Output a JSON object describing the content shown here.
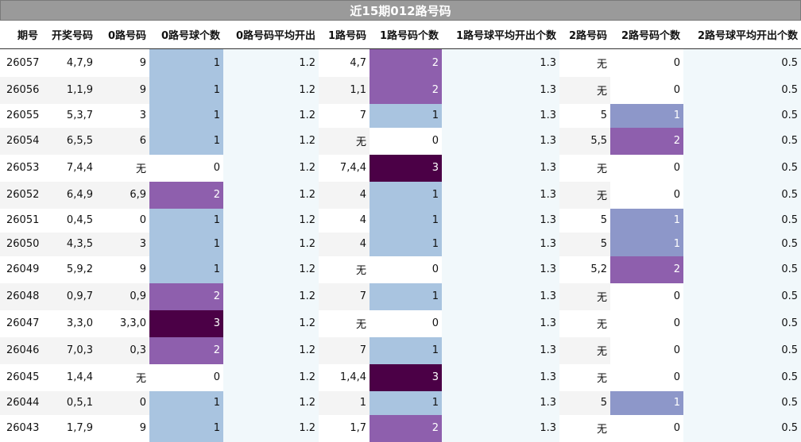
{
  "title": "近15期012路号码",
  "headers": [
    "期号",
    "开奖号码",
    "0路号码",
    "0路号球个数",
    "0路号码平均开出",
    "1路号码",
    "1路号码个数",
    "1路号球平均开出个数",
    "2路号码",
    "2路号码个数",
    "2路号球平均开出个数"
  ],
  "colors": {
    "count_1": "#a9c4e0",
    "count_1_col2": "#8d97c9",
    "count_2": "#8e5fad",
    "count_3": "#4b0046",
    "avg_bg": "#f1f8fb"
  },
  "rows": [
    [
      "26057",
      "4,7,9",
      "9",
      "1",
      "1.2",
      "4,7",
      "2",
      "1.3",
      "无",
      "0",
      "0.5"
    ],
    [
      "26056",
      "1,1,9",
      "9",
      "1",
      "1.2",
      "1,1",
      "2",
      "1.3",
      "无",
      "0",
      "0.5"
    ],
    [
      "26055",
      "5,3,7",
      "3",
      "1",
      "1.2",
      "7",
      "1",
      "1.3",
      "5",
      "1",
      "0.5"
    ],
    [
      "26054",
      "6,5,5",
      "6",
      "1",
      "1.2",
      "无",
      "0",
      "1.3",
      "5,5",
      "2",
      "0.5"
    ],
    [
      "26053",
      "7,4,4",
      "无",
      "0",
      "1.2",
      "7,4,4",
      "3",
      "1.3",
      "无",
      "0",
      "0.5"
    ],
    [
      "26052",
      "6,4,9",
      "6,9",
      "2",
      "1.2",
      "4",
      "1",
      "1.3",
      "无",
      "0",
      "0.5"
    ],
    [
      "26051",
      "0,4,5",
      "0",
      "1",
      "1.2",
      "4",
      "1",
      "1.3",
      "5",
      "1",
      "0.5"
    ],
    [
      "26050",
      "4,3,5",
      "3",
      "1",
      "1.2",
      "4",
      "1",
      "1.3",
      "5",
      "1",
      "0.5"
    ],
    [
      "26049",
      "5,9,2",
      "9",
      "1",
      "1.2",
      "无",
      "0",
      "1.3",
      "5,2",
      "2",
      "0.5"
    ],
    [
      "26048",
      "0,9,7",
      "0,9",
      "2",
      "1.2",
      "7",
      "1",
      "1.3",
      "无",
      "0",
      "0.5"
    ],
    [
      "26047",
      "3,3,0",
      "3,3,0",
      "3",
      "1.2",
      "无",
      "0",
      "1.3",
      "无",
      "0",
      "0.5"
    ],
    [
      "26046",
      "7,0,3",
      "0,3",
      "2",
      "1.2",
      "7",
      "1",
      "1.3",
      "无",
      "0",
      "0.5"
    ],
    [
      "26045",
      "1,4,4",
      "无",
      "0",
      "1.2",
      "1,4,4",
      "3",
      "1.3",
      "无",
      "0",
      "0.5"
    ],
    [
      "26044",
      "0,5,1",
      "0",
      "1",
      "1.2",
      "1",
      "1",
      "1.3",
      "5",
      "1",
      "0.5"
    ],
    [
      "26043",
      "1,7,9",
      "9",
      "1",
      "1.2",
      "1,7",
      "2",
      "1.3",
      "无",
      "0",
      "0.5"
    ]
  ]
}
